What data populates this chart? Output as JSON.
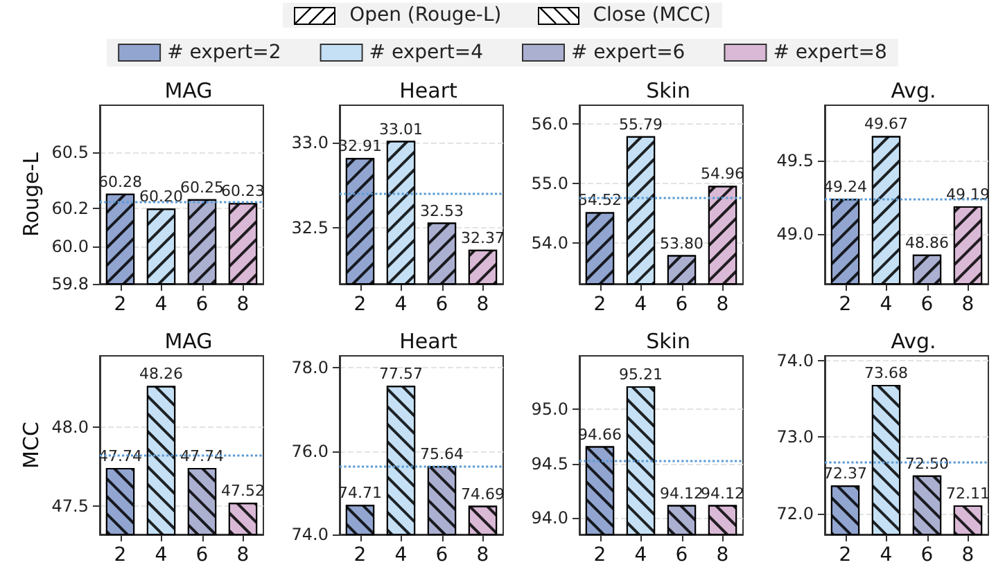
{
  "chart_data": [
    {
      "type": "bar",
      "title": "MAG",
      "ylabel": "Rouge-L",
      "categories": [
        "2",
        "4",
        "6",
        "8"
      ],
      "legend": "top",
      "annotations": [
        "Open (Rouge-L)",
        "Close (MCC)"
      ],
      "ylim": [
        59.8,
        60.75
      ],
      "yticks": [
        59.8,
        {
          "value": 60,
          "label": "60.0"
        },
        60.2,
        60.5
      ],
      "grid": "y",
      "ref_lines": [
        {
          "axis": "y",
          "value": 60.24,
          "color": "#5b9bd5",
          "line_style": "dotted"
        }
      ],
      "series": [
        {
          "name": "# expert=2",
          "color": "#91a5d0",
          "values": [
            60.28,
            null,
            null,
            null
          ],
          "value_labels": [
            "60.28",
            null,
            null,
            null
          ]
        },
        {
          "name": "# expert=4",
          "color": "#c5e0f4",
          "values": [
            null,
            60.2,
            null,
            null
          ],
          "value_labels": [
            null,
            "60.20",
            null,
            null
          ]
        },
        {
          "name": "# expert=6",
          "color": "#abb0d1",
          "values": [
            null,
            null,
            60.25,
            null
          ],
          "value_labels": [
            null,
            null,
            "60.25",
            null
          ]
        },
        {
          "name": "# expert=8",
          "color": "#d9b9d6",
          "values": [
            null,
            null,
            null,
            60.23
          ],
          "value_labels": [
            null,
            null,
            null,
            "60.23"
          ]
        }
      ]
    },
    {
      "type": "bar",
      "title": "Heart",
      "categories": [
        "2",
        "4",
        "6",
        "8"
      ],
      "ylim": [
        32.17,
        33.22
      ],
      "yticks": [
        32.5,
        {
          "value": 33,
          "label": "33.0"
        }
      ],
      "grid": "y",
      "ref_lines": [
        {
          "axis": "y",
          "value": 32.7,
          "color": "#5b9bd5",
          "line_style": "dotted"
        }
      ],
      "series": [
        {
          "color": "#91a5d0",
          "values": [
            32.91,
            null,
            null,
            null
          ],
          "value_labels": [
            "32.91",
            null,
            null,
            null
          ]
        },
        {
          "color": "#c5e0f4",
          "values": [
            null,
            33.01,
            null,
            null
          ],
          "value_labels": [
            null,
            "33.01",
            null,
            null
          ]
        },
        {
          "color": "#abb0d1",
          "values": [
            null,
            null,
            32.53,
            null
          ],
          "value_labels": [
            null,
            null,
            "32.53",
            null
          ]
        },
        {
          "color": "#d9b9d6",
          "values": [
            null,
            null,
            null,
            32.37
          ],
          "value_labels": [
            null,
            null,
            null,
            "32.37"
          ]
        }
      ]
    },
    {
      "type": "bar",
      "title": "Skin",
      "categories": [
        "2",
        "4",
        "6",
        "8"
      ],
      "ylim": [
        53.32,
        56.31
      ],
      "yticks": [
        {
          "value": 54,
          "label": "54.0"
        },
        {
          "value": 55,
          "label": "55.0"
        },
        {
          "value": 56,
          "label": "56.0"
        }
      ],
      "grid": "y",
      "ref_lines": [
        {
          "axis": "y",
          "value": 54.77,
          "color": "#5b9bd5",
          "line_style": "dotted"
        }
      ],
      "series": [
        {
          "color": "#91a5d0",
          "values": [
            54.52,
            null,
            null,
            null
          ],
          "value_labels": [
            "54.52",
            null,
            null,
            null
          ]
        },
        {
          "color": "#c5e0f4",
          "values": [
            null,
            55.79,
            null,
            null
          ],
          "value_labels": [
            null,
            "55.79",
            null,
            null
          ]
        },
        {
          "color": "#abb0d1",
          "values": [
            null,
            null,
            53.8,
            null
          ],
          "value_labels": [
            null,
            null,
            "53.80",
            null
          ]
        },
        {
          "color": "#d9b9d6",
          "values": [
            null,
            null,
            null,
            54.96
          ],
          "value_labels": [
            null,
            null,
            null,
            "54.96"
          ]
        }
      ]
    },
    {
      "type": "bar",
      "title": "Avg.",
      "categories": [
        "2",
        "4",
        "6",
        "8"
      ],
      "ylim": [
        48.66,
        49.88
      ],
      "yticks": [
        {
          "value": 49,
          "label": "49.0"
        },
        49.5
      ],
      "grid": "y",
      "ref_lines": [
        {
          "axis": "y",
          "value": 49.24,
          "color": "#5b9bd5",
          "line_style": "dotted"
        }
      ],
      "series": [
        {
          "color": "#91a5d0",
          "values": [
            49.24,
            null,
            null,
            null
          ],
          "value_labels": [
            "49.24",
            null,
            null,
            null
          ]
        },
        {
          "color": "#c5e0f4",
          "values": [
            null,
            49.67,
            null,
            null
          ],
          "value_labels": [
            null,
            "49.67",
            null,
            null
          ]
        },
        {
          "color": "#abb0d1",
          "values": [
            null,
            null,
            48.86,
            null
          ],
          "value_labels": [
            null,
            null,
            "48.86",
            null
          ]
        },
        {
          "color": "#d9b9d6",
          "values": [
            null,
            null,
            null,
            49.19
          ],
          "value_labels": [
            null,
            null,
            null,
            "49.19"
          ]
        }
      ]
    },
    {
      "type": "bar",
      "title": "MAG",
      "ylabel": "MCC",
      "categories": [
        "2",
        "4",
        "6",
        "8"
      ],
      "ylim": [
        47.32,
        48.45
      ],
      "yticks": [
        47.5,
        {
          "value": 48,
          "label": "48.0"
        }
      ],
      "grid": "y",
      "ref_lines": [
        {
          "axis": "y",
          "value": 47.82,
          "color": "#5b9bd5",
          "line_style": "dotted"
        }
      ],
      "series": [
        {
          "color": "#91a5d0",
          "values": [
            47.74,
            null,
            null,
            null
          ],
          "value_labels": [
            "47.74",
            null,
            null,
            null
          ]
        },
        {
          "color": "#c5e0f4",
          "values": [
            null,
            48.26,
            null,
            null
          ],
          "value_labels": [
            null,
            "48.26",
            null,
            null
          ]
        },
        {
          "color": "#abb0d1",
          "values": [
            null,
            null,
            47.74,
            null
          ],
          "value_labels": [
            null,
            null,
            "47.74",
            null
          ]
        },
        {
          "color": "#d9b9d6",
          "values": [
            null,
            null,
            null,
            47.52
          ],
          "value_labels": [
            null,
            null,
            null,
            "47.52"
          ]
        }
      ]
    },
    {
      "type": "bar",
      "title": "Heart",
      "categories": [
        "2",
        "4",
        "6",
        "8"
      ],
      "ylim": [
        74,
        78.29
      ],
      "yticks": [
        {
          "value": 74,
          "label": "74.0"
        },
        {
          "value": 76,
          "label": "76.0"
        },
        {
          "value": 78,
          "label": "78.0"
        }
      ],
      "grid": "y",
      "ref_lines": [
        {
          "axis": "y",
          "value": 75.65,
          "color": "#5b9bd5",
          "line_style": "dotted"
        }
      ],
      "series": [
        {
          "color": "#91a5d0",
          "values": [
            74.71,
            null,
            null,
            null
          ],
          "value_labels": [
            "74.71",
            null,
            null,
            null
          ]
        },
        {
          "color": "#c5e0f4",
          "values": [
            null,
            77.57,
            null,
            null
          ],
          "value_labels": [
            null,
            "77.57",
            null,
            null
          ]
        },
        {
          "color": "#abb0d1",
          "values": [
            null,
            null,
            75.64,
            null
          ],
          "value_labels": [
            null,
            null,
            "75.64",
            null
          ]
        },
        {
          "color": "#d9b9d6",
          "values": [
            null,
            null,
            null,
            74.69
          ],
          "value_labels": [
            null,
            null,
            null,
            "74.69"
          ]
        }
      ]
    },
    {
      "type": "bar",
      "title": "Skin",
      "categories": [
        "2",
        "4",
        "6",
        "8"
      ],
      "ylim": [
        93.85,
        95.49
      ],
      "yticks": [
        {
          "value": 94,
          "label": "94.0"
        },
        94.5,
        {
          "value": 95,
          "label": "95.0"
        }
      ],
      "grid": "y",
      "ref_lines": [
        {
          "axis": "y",
          "value": 94.53,
          "color": "#5b9bd5",
          "line_style": "dotted"
        }
      ],
      "series": [
        {
          "color": "#91a5d0",
          "values": [
            94.66,
            null,
            null,
            null
          ],
          "value_labels": [
            "94.66",
            null,
            null,
            null
          ]
        },
        {
          "color": "#c5e0f4",
          "values": [
            null,
            95.21,
            null,
            null
          ],
          "value_labels": [
            null,
            "95.21",
            null,
            null
          ]
        },
        {
          "color": "#abb0d1",
          "values": [
            null,
            null,
            94.12,
            null
          ],
          "value_labels": [
            null,
            null,
            "94.12",
            null
          ]
        },
        {
          "color": "#d9b9d6",
          "values": [
            null,
            null,
            null,
            94.12
          ],
          "value_labels": [
            null,
            null,
            null,
            "94.12"
          ]
        }
      ]
    },
    {
      "type": "bar",
      "title": "Avg.",
      "categories": [
        "2",
        "4",
        "6",
        "8"
      ],
      "ylim": [
        71.73,
        74.06
      ],
      "yticks": [
        {
          "value": 72,
          "label": "72.0"
        },
        {
          "value": 73,
          "label": "73.0"
        },
        {
          "value": 74,
          "label": "74.0"
        }
      ],
      "grid": "y",
      "ref_lines": [
        {
          "axis": "y",
          "value": 72.67,
          "color": "#5b9bd5",
          "line_style": "dotted"
        }
      ],
      "series": [
        {
          "color": "#91a5d0",
          "values": [
            72.37,
            null,
            null,
            null
          ],
          "value_labels": [
            "72.37",
            null,
            null,
            null
          ]
        },
        {
          "color": "#c5e0f4",
          "values": [
            null,
            73.68,
            null,
            null
          ],
          "value_labels": [
            null,
            "73.68",
            null,
            null
          ]
        },
        {
          "color": "#abb0d1",
          "values": [
            null,
            null,
            72.5,
            null
          ],
          "value_labels": [
            null,
            null,
            "72.50",
            null
          ]
        },
        {
          "color": "#d9b9d6",
          "values": [
            null,
            null,
            null,
            72.11
          ],
          "value_labels": [
            null,
            null,
            null,
            "72.11"
          ]
        }
      ]
    }
  ]
}
